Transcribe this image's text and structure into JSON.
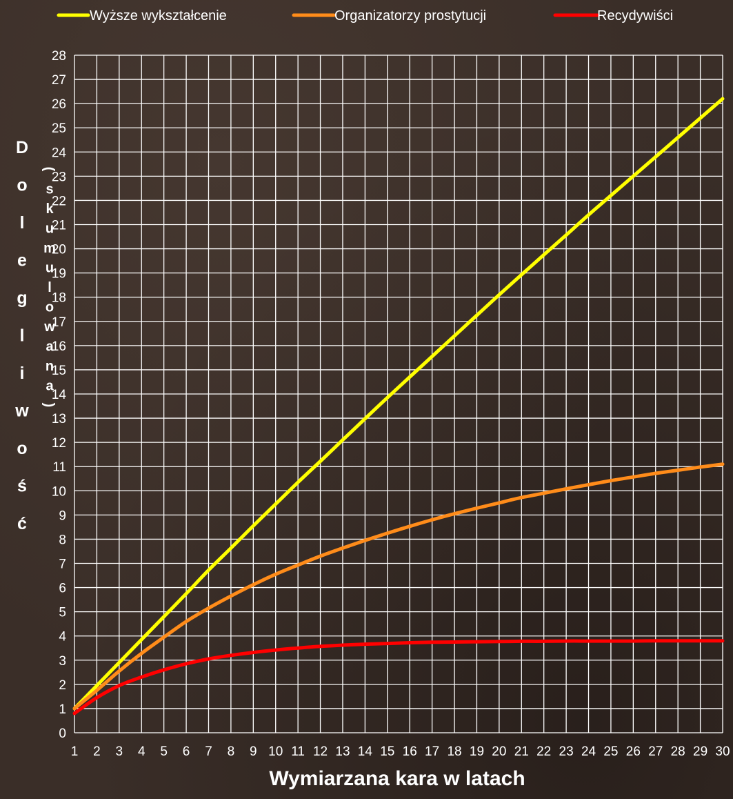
{
  "chart_data": {
    "type": "line",
    "title": "",
    "xlabel": "Wymiarzana kara w latach",
    "ylabel": "Dolegliwość",
    "ylabel_secondary": "(skumulowana)",
    "xlim": [
      1,
      30
    ],
    "ylim": [
      0,
      28
    ],
    "grid": true,
    "legend_position": "top",
    "x": [
      1,
      2,
      3,
      4,
      5,
      6,
      7,
      8,
      9,
      10,
      11,
      12,
      13,
      14,
      15,
      16,
      17,
      18,
      19,
      20,
      21,
      22,
      23,
      24,
      25,
      26,
      27,
      28,
      29,
      30
    ],
    "series": [
      {
        "name": "Wyższe wykształcenie",
        "color": "#ffff00",
        "values": [
          1.0,
          1.95,
          2.9,
          3.85,
          4.8,
          5.75,
          6.72,
          7.63,
          8.55,
          9.45,
          10.35,
          11.22,
          12.1,
          12.98,
          13.85,
          14.7,
          15.55,
          16.4,
          17.25,
          18.1,
          18.93,
          19.75,
          20.57,
          21.4,
          22.2,
          23.0,
          23.8,
          24.6,
          25.4,
          26.2
        ]
      },
      {
        "name": "Organizatorzy prostytucji",
        "color": "#ff8c1a",
        "values": [
          1.0,
          1.75,
          2.55,
          3.28,
          3.95,
          4.6,
          5.15,
          5.65,
          6.12,
          6.55,
          6.93,
          7.3,
          7.63,
          7.95,
          8.25,
          8.53,
          8.8,
          9.05,
          9.28,
          9.5,
          9.72,
          9.9,
          10.08,
          10.25,
          10.42,
          10.57,
          10.72,
          10.85,
          10.98,
          11.1
        ]
      },
      {
        "name": "Recydywiści",
        "color": "#ff0000",
        "values": [
          0.8,
          1.45,
          1.95,
          2.3,
          2.6,
          2.85,
          3.05,
          3.2,
          3.32,
          3.42,
          3.5,
          3.57,
          3.62,
          3.66,
          3.69,
          3.72,
          3.74,
          3.75,
          3.76,
          3.77,
          3.78,
          3.78,
          3.79,
          3.79,
          3.79,
          3.79,
          3.8,
          3.8,
          3.8,
          3.8
        ]
      }
    ]
  }
}
